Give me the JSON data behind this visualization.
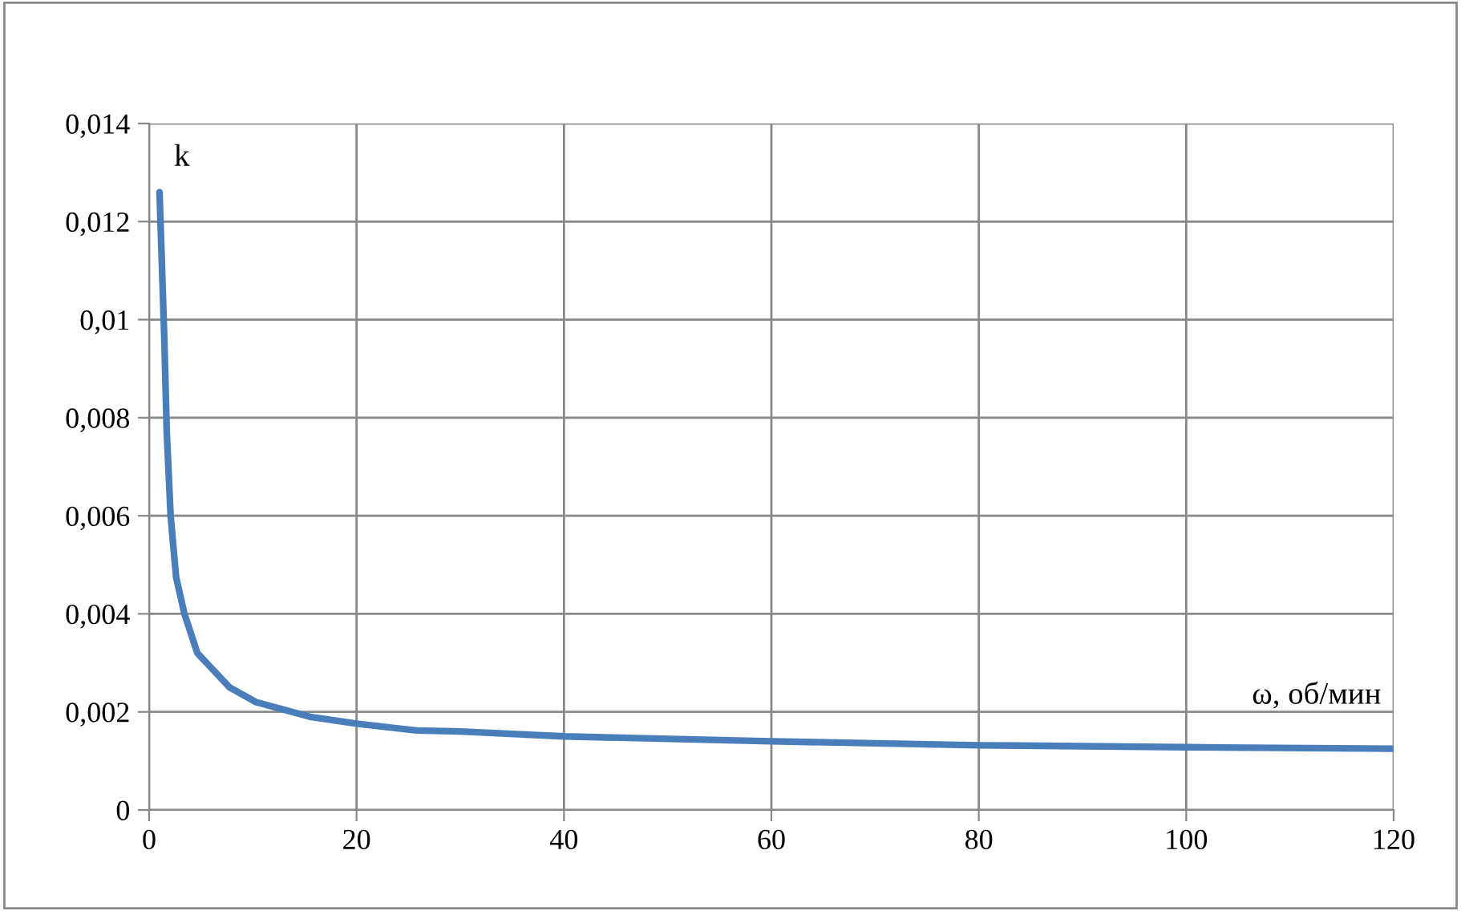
{
  "chart_data": {
    "type": "line",
    "xlabel": "ω, об/мин",
    "ylabel": "k",
    "series": [
      {
        "color": "#4a7ebb",
        "x": [
          1.0,
          1.45,
          1.7,
          2.07,
          2.6,
          3.4,
          4.65,
          7.75,
          10.3,
          15.5,
          20,
          25.8,
          30,
          40,
          60,
          80,
          100,
          120
        ],
        "values": [
          0.0126,
          0.0097,
          0.0077,
          0.006,
          0.00475,
          0.004,
          0.0032,
          0.0025,
          0.0022,
          0.0019,
          0.00176,
          0.00162,
          0.0016,
          0.0015,
          0.0014,
          0.00132,
          0.00128,
          0.00125
        ]
      }
    ],
    "xlim": [
      0,
      120
    ],
    "xticks": [
      0,
      20,
      40,
      60,
      80,
      100,
      120
    ],
    "ylim": [
      0,
      0.014
    ],
    "yticks": [
      {
        "value": 0,
        "label": "0"
      },
      {
        "value": 0.002,
        "label": "0,002"
      },
      {
        "value": 0.004,
        "label": "0,004"
      },
      {
        "value": 0.006,
        "label": "0,006"
      },
      {
        "value": 0.008,
        "label": "0,008"
      },
      {
        "value": 0.01,
        "label": "0,01"
      },
      {
        "value": 0.012,
        "label": "0,012"
      },
      {
        "value": 0.014,
        "label": "0,014"
      }
    ],
    "grid": true,
    "marker": "none",
    "line_style": "solid"
  }
}
